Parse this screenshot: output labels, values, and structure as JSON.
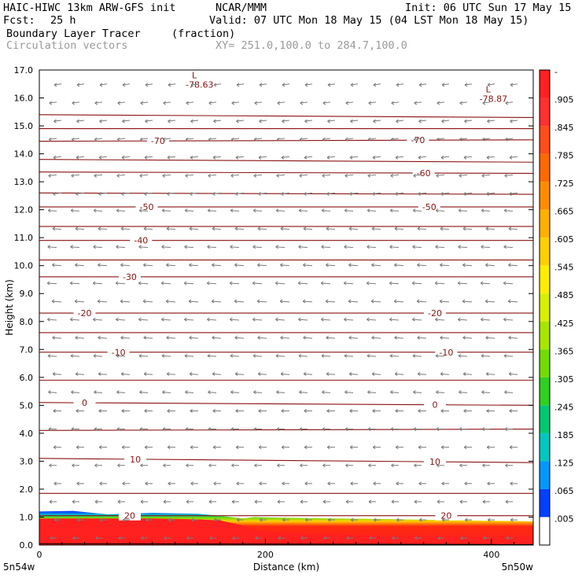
{
  "header": {
    "model": "HAIC-HIWC 13km ARW-GFS init",
    "center": "NCAR/MMM",
    "init": "Init: 06 UTC Sun 17 May 15",
    "fcst_label": "Fcst:",
    "fcst_value": "25 h",
    "valid": "Valid: 07 UTC Mon 18 May 15 (04 LST Mon 18 May 15)",
    "field_name": "Boundary Layer Tracer",
    "field_units": "(fraction)",
    "vector_name": "Circulation vectors",
    "cross_section": "XY= 251.0,100.0 to 284.7,100.0"
  },
  "chart_data": {
    "type": "heatmap",
    "title": "",
    "xlabel": "Distance (km)",
    "ylabel": "Height (km)",
    "xlim": [
      0,
      437
    ],
    "ylim": [
      0,
      17
    ],
    "x_ticks": [
      0,
      200,
      400
    ],
    "y_ticks": [
      0.0,
      1.0,
      2.0,
      3.0,
      4.0,
      5.0,
      6.0,
      7.0,
      8.0,
      9.0,
      10.0,
      11.0,
      12.0,
      13.0,
      14.0,
      15.0,
      16.0,
      17.0
    ],
    "x_endpoint_labels": {
      "left": "5n54w",
      "right": "5n50w"
    },
    "colorbar": {
      "labels": [
        "-",
        ".905",
        ".845",
        ".785",
        ".725",
        ".665",
        ".605",
        ".545",
        ".485",
        ".425",
        ".365",
        ".305",
        ".245",
        ".185",
        ".125",
        ".065",
        ".005"
      ],
      "colors": [
        "#ff2020",
        "#ff3030",
        "#ff4d1a",
        "#ff6a00",
        "#ff8c00",
        "#ffb000",
        "#ffd000",
        "#ffee00",
        "#d8ef00",
        "#a8e600",
        "#70dc00",
        "#30d020",
        "#00c870",
        "#00c8c0",
        "#0098ff",
        "#0040ff",
        "#ffffff"
      ]
    },
    "tracer_band": {
      "x": [
        0,
        30,
        60,
        100,
        140,
        160,
        180,
        190,
        210,
        260,
        320,
        380,
        437
      ],
      "core_top_km": [
        0.95,
        0.95,
        0.95,
        0.95,
        0.92,
        0.88,
        0.7,
        0.55,
        0.45,
        0.38,
        0.32,
        0.3,
        0.3
      ],
      "layer_top_km": [
        1.2,
        1.22,
        1.1,
        1.15,
        1.12,
        1.05,
        0.95,
        1.0,
        0.98,
        0.95,
        0.92,
        0.88,
        0.85
      ]
    },
    "temperature_contours": {
      "levels": [
        20,
        10,
        0,
        -10,
        -20,
        -30,
        -40,
        -50,
        -60,
        -70
      ],
      "x": [
        0,
        437
      ],
      "heights_left_km": [
        1.05,
        3.1,
        5.1,
        6.9,
        8.3,
        9.6,
        10.9,
        12.1,
        13.35,
        14.45
      ],
      "heights_right_km": [
        1.05,
        2.95,
        5.0,
        6.9,
        8.3,
        9.6,
        10.9,
        12.1,
        13.3,
        14.5
      ],
      "label_x_left": [
        80,
        85,
        40,
        70,
        40,
        80,
        90,
        95,
        null,
        105
      ],
      "label_x_right": [
        360,
        350,
        350,
        360,
        350,
        null,
        null,
        345,
        340,
        335
      ],
      "extra_lines_left_km": [
        1.85,
        4.1,
        5.9,
        7.6,
        10.2,
        11.4,
        12.6,
        13.8,
        14.9,
        15.4
      ],
      "extra_lines_right_km": [
        1.85,
        4.15,
        5.9,
        7.6,
        10.2,
        11.4,
        12.55,
        13.7,
        14.9,
        15.3
      ]
    },
    "minima": [
      {
        "x": 135,
        "y": 16.7,
        "label": "L",
        "value": "-78.63"
      },
      {
        "x": 395,
        "y": 16.2,
        "label": "L",
        "value": "-78.87"
      }
    ]
  }
}
